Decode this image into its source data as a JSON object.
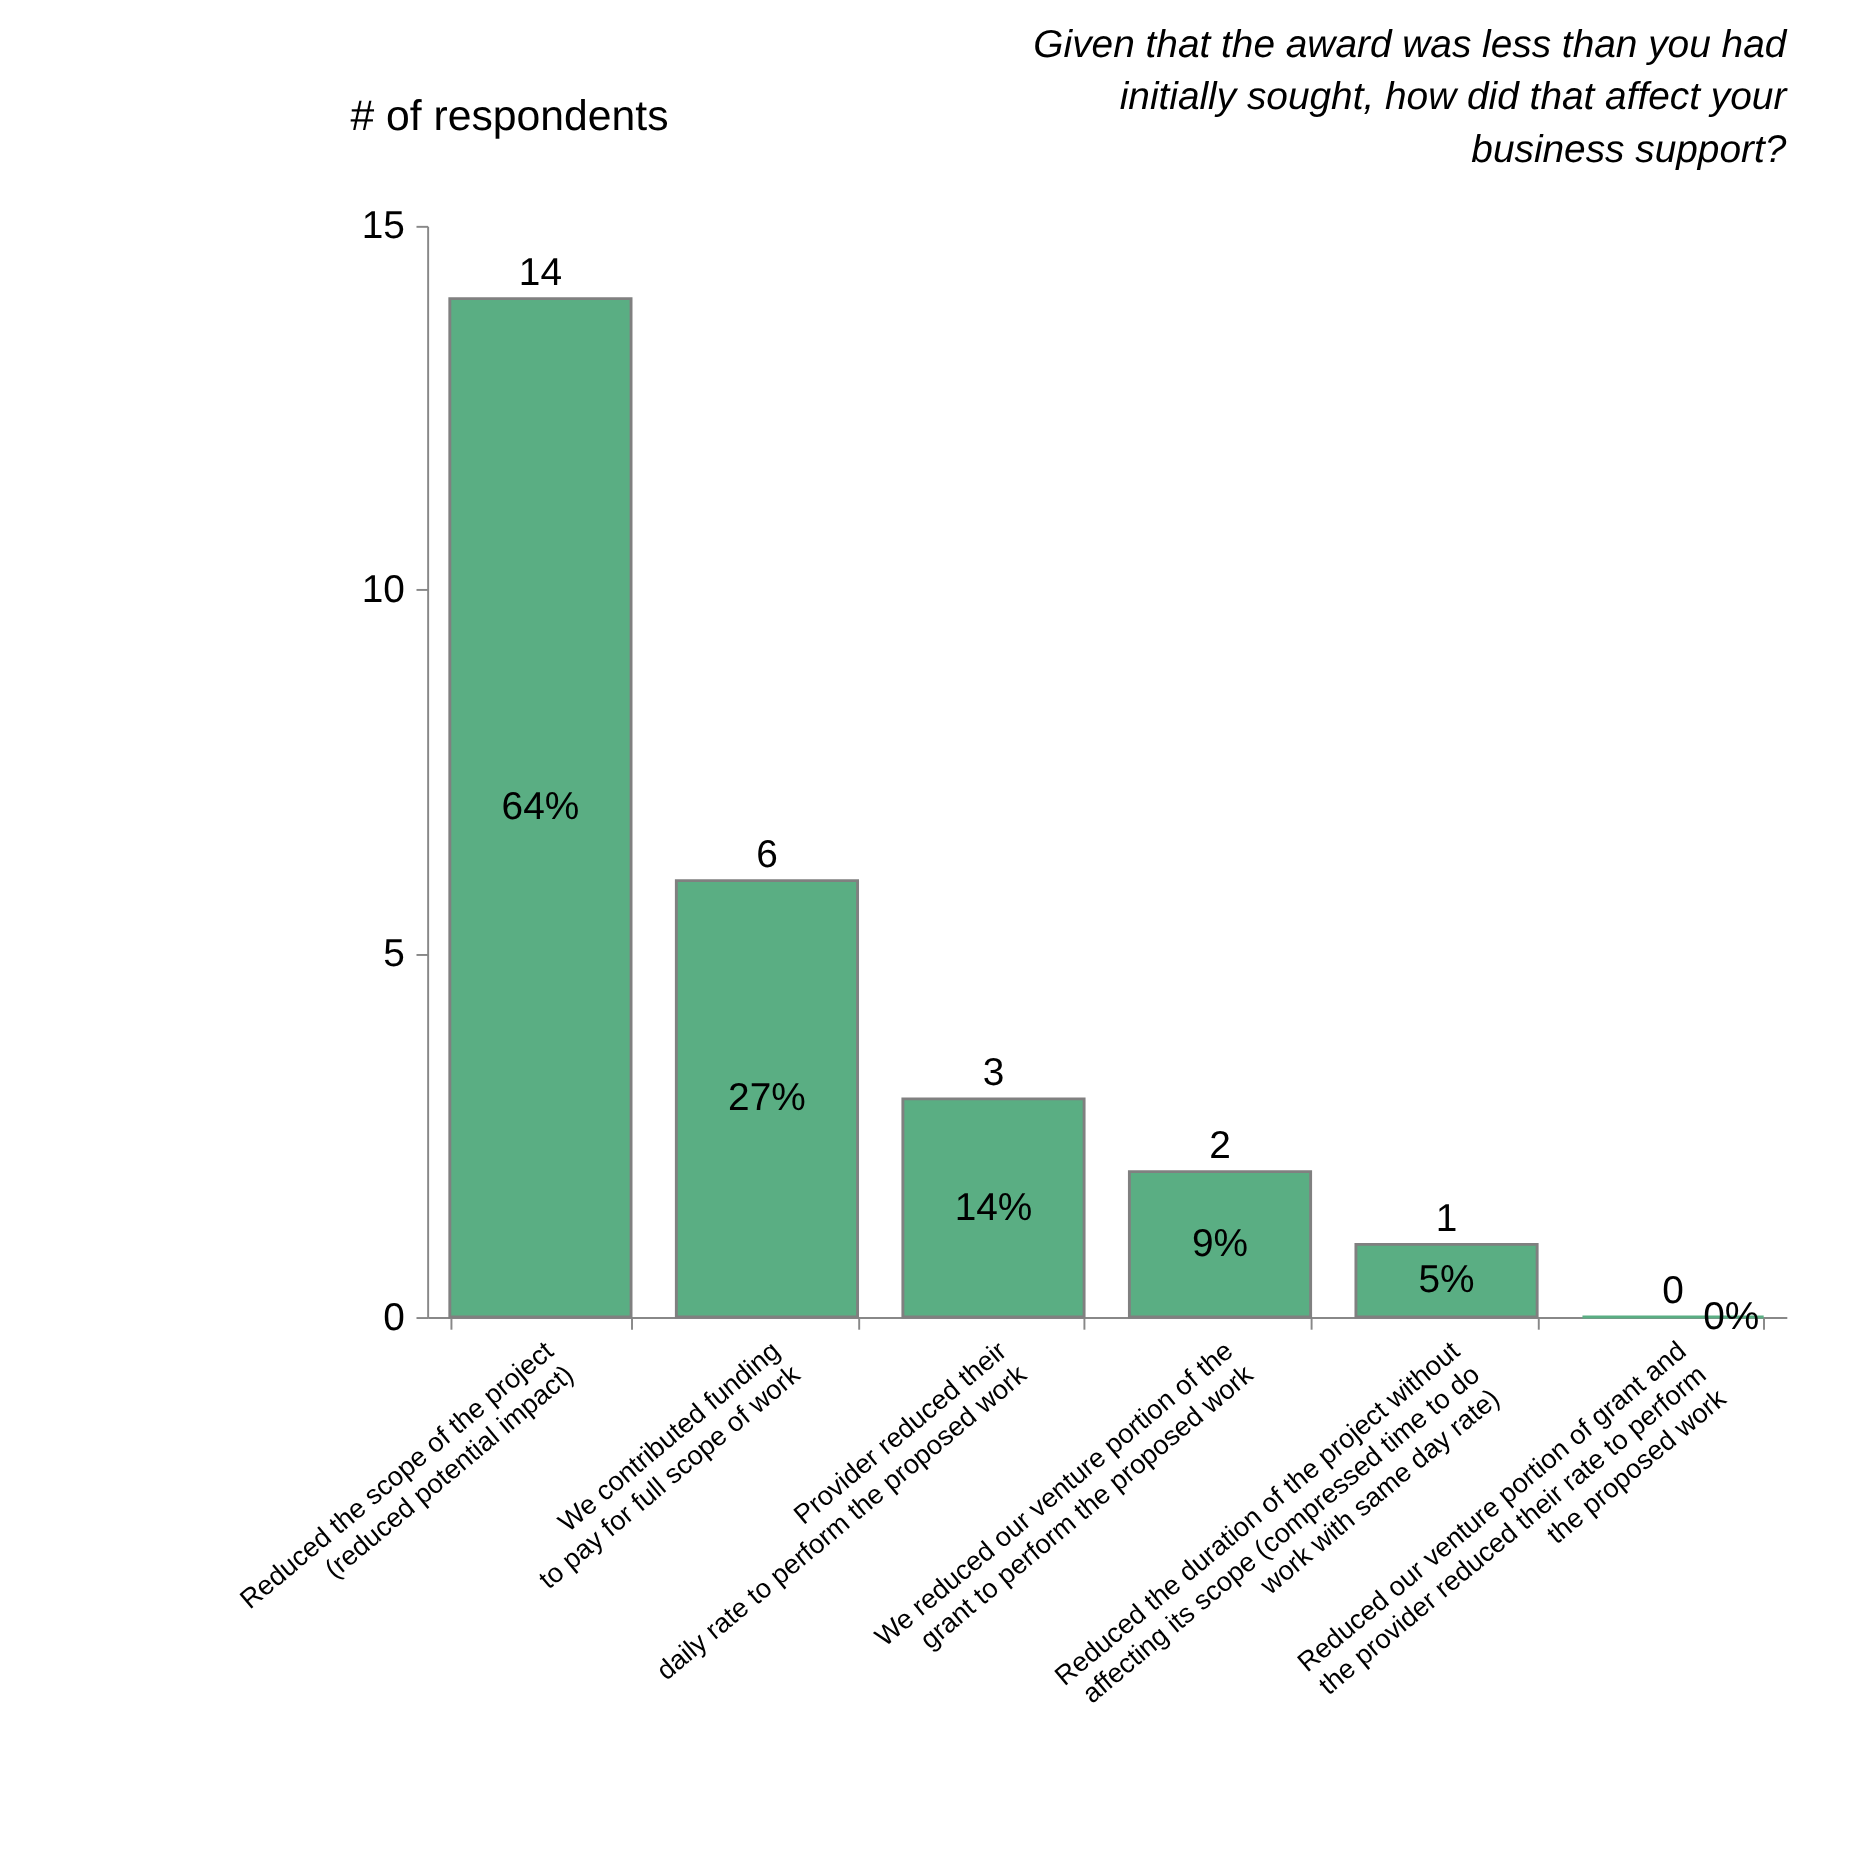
{
  "chart_data": {
    "type": "bar",
    "title": [
      "Given that the award was less than you had",
      "initially sought, how did that affect your",
      "business support?"
    ],
    "ylabel": "# of respondents",
    "categories": [
      "Reduced the scope of the project\n(reduced potential impact)",
      "We contributed funding\nto pay for full scope of work",
      "Provider reduced their\ndaily rate to perform the proposed work",
      "We reduced our venture portion of the\ngrant to perform the proposed work",
      "Reduced the duration of the project without\naffecting its scope (compressed time to do\nwork with same day rate)",
      "Reduced our venture portion of grant and\nthe provider reduced their rate to perform\nthe proposed work"
    ],
    "values": [
      14,
      6,
      3,
      2,
      1,
      0
    ],
    "value_labels": [
      "14",
      "6",
      "3",
      "2",
      "1",
      "0"
    ],
    "annotations": [
      "64%",
      "27%",
      "14%",
      "9%",
      "5%",
      "0%"
    ],
    "color": "#5aae83",
    "ylim": [
      0,
      15
    ],
    "yticks": [
      0,
      5,
      10,
      15
    ],
    "grid": false
  }
}
